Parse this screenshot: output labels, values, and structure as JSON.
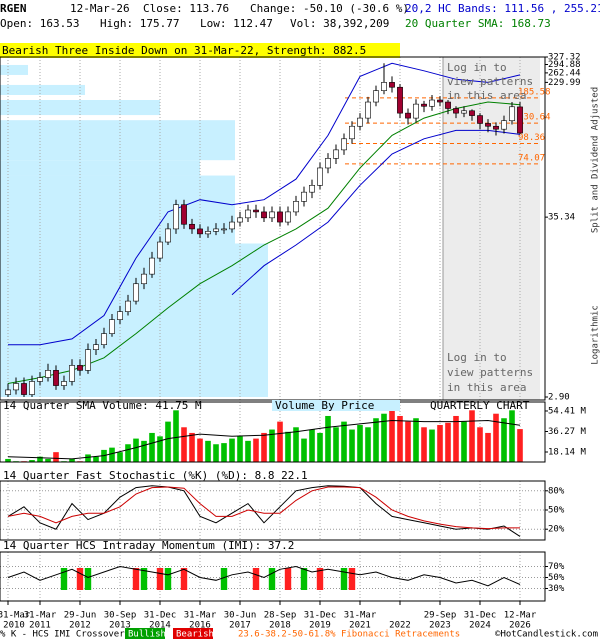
{
  "header": {
    "symbol": "RGEN",
    "date": "12-Mar-26",
    "close": "Close: 113.76",
    "change": "Change: -50.10 (-30.6 %)",
    "bands": "20,2 HC Bands: 111.56 , 255.21",
    "open": "Open: 163.53",
    "high": "High: 175.77",
    "low": "Low: 112.47",
    "volume": "Vol: 38,392,209",
    "sma": "20 Quarter SMA: 168.73"
  },
  "chart_data": [
    {
      "type": "candlestick",
      "title": "Bearish Three Inside Down on 31-Mar-22, Strength: 882.5",
      "open": [
        3.0,
        3.2,
        3.5,
        3.0,
        3.6,
        3.8,
        4.2,
        3.4,
        3.6,
        4.5,
        4.2,
        5.6,
        6.0,
        7.0,
        8.5,
        9.5,
        11,
        14,
        16,
        20,
        25,
        30,
        42,
        32,
        30,
        28,
        29,
        30,
        30,
        33,
        35,
        39,
        38,
        35,
        38,
        33,
        38,
        44,
        50,
        55,
        70,
        80,
        90,
        105,
        125,
        140,
        175,
        205,
        230,
        215,
        150,
        140,
        170,
        165,
        180,
        175,
        160,
        150,
        155,
        145,
        130,
        125,
        120,
        135,
        163.53
      ],
      "high": [
        3.5,
        3.8,
        3.8,
        3.9,
        4.1,
        4.6,
        4.5,
        3.9,
        4.9,
        4.9,
        6.1,
        6.5,
        7.6,
        9.2,
        10.3,
        12,
        15.2,
        17.5,
        21.8,
        27,
        32.5,
        45,
        45,
        34.5,
        32,
        31,
        32.5,
        32.5,
        36,
        38,
        42,
        42,
        41,
        41,
        41,
        41,
        47.5,
        54,
        59.5,
        75.5,
        86,
        97,
        113,
        134,
        150,
        188,
        220,
        300,
        250,
        225,
        160,
        182,
        178,
        193,
        190,
        180,
        165,
        165,
        158,
        150,
        138,
        132,
        145,
        175,
        175.77
      ],
      "low": [
        2.9,
        3.0,
        2.9,
        2.9,
        3.4,
        3.6,
        3.2,
        3.2,
        3.4,
        3.9,
        4.0,
        5.2,
        5.7,
        6.7,
        8.0,
        9.0,
        10.5,
        13,
        15.2,
        19,
        24,
        28,
        30,
        28,
        26.5,
        26.5,
        27.5,
        28,
        28.5,
        31,
        33,
        35,
        33,
        33,
        31,
        31.5,
        36,
        41,
        46,
        52,
        65,
        74,
        84,
        98,
        118,
        130,
        165,
        195,
        200,
        140,
        128,
        132,
        152,
        155,
        165,
        148,
        140,
        142,
        135,
        120,
        115,
        110,
        113,
        128,
        112.47
      ],
      "close": [
        3.2,
        3.5,
        3.0,
        3.6,
        3.8,
        4.2,
        3.4,
        3.6,
        4.5,
        4.2,
        5.6,
        6.0,
        7.0,
        8.5,
        9.5,
        11,
        14,
        16,
        20,
        25,
        30,
        42,
        32,
        30,
        28,
        29,
        30,
        30,
        33,
        35,
        39,
        38,
        35,
        38,
        33,
        38,
        44,
        50,
        55,
        70,
        80,
        90,
        105,
        125,
        140,
        175,
        205,
        230,
        215,
        150,
        140,
        170,
        165,
        180,
        175,
        160,
        150,
        155,
        145,
        130,
        125,
        120,
        135,
        163.86,
        113.76
      ],
      "up_color": "#ffffff",
      "down_color": "#a00030",
      "series": [
        {
          "color": "#0000cc",
          "x": [
            0,
            4,
            8,
            12,
            16,
            20,
            24,
            28,
            32,
            36,
            40,
            44,
            48,
            52,
            56,
            60,
            64
          ],
          "values": [
            6,
            6,
            6.5,
            9,
            20,
            38,
            45,
            42,
            45,
            60,
            110,
            250,
            300,
            270,
            240,
            230,
            255.21
          ]
        },
        {
          "color": "#008000",
          "x": [
            0,
            4,
            8,
            12,
            16,
            20,
            24,
            28,
            32,
            36,
            40,
            44,
            48,
            52,
            56,
            60,
            64
          ],
          "values": [
            3.5,
            3.8,
            4.2,
            5,
            7,
            10,
            14,
            18,
            24,
            30,
            40,
            70,
            110,
            140,
            160,
            175,
            168.73
          ]
        },
        {
          "color": "#0000cc",
          "x": [
            0,
            4,
            8,
            12,
            16,
            20,
            24,
            28,
            32,
            36,
            40,
            44,
            48,
            52,
            56,
            60,
            64
          ],
          "values": [
            null,
            null,
            null,
            null,
            null,
            null,
            null,
            12,
            18,
            24,
            33,
            55,
            85,
            105,
            118,
            118,
            111.56
          ]
        }
      ],
      "log_scale": true,
      "ylim": [
        2.9,
        327.32
      ],
      "yticks": [
        327.32,
        294.88,
        262.44,
        229.99,
        35.34,
        {
          "value": 2.9,
          "label": "2.90"
        }
      ],
      "fib_levels": [
        185.58,
        130.64,
        98.36,
        74.07
      ],
      "fib_color": "#ff6600",
      "volume_by_price": {
        "ranges": [
          [
            255,
            293
          ],
          [
            193,
            222
          ],
          [
            146,
            180
          ],
          [
            78,
            136
          ],
          [
            63,
            78
          ],
          [
            24.5,
            63
          ],
          [
            2.9,
            24.5
          ]
        ],
        "values": [
          28,
          85,
          160,
          235,
          200,
          235,
          268
        ],
        "xlim": [
          0,
          545
        ],
        "color": "#c8f0ff"
      },
      "annotations": [
        {
          "lines": [
            "Log in to",
            "view patterns",
            "in this area"
          ]
        },
        {
          "lines": [
            "Log in to",
            "view patterns",
            "in this area"
          ]
        }
      ],
      "side_labels": [
        "Split and Dividend Adjusted",
        "Logarithmic"
      ],
      "grid": true
    },
    {
      "type": "bar",
      "title": "14 Quarter SMA Volume: 41.75 M",
      "subtitle": "Volume By Price",
      "label": "QUARTERLY CHART",
      "values": [
        12,
        10,
        10,
        11,
        14,
        12,
        18,
        10,
        12,
        10,
        16,
        14,
        20,
        22,
        18,
        25,
        30,
        28,
        35,
        32,
        45,
        55,
        40,
        35,
        30,
        28,
        25,
        26,
        30,
        32,
        28,
        30,
        35,
        38,
        45,
        36,
        40,
        30,
        38,
        35,
        50,
        40,
        45,
        38,
        42,
        40,
        48,
        52,
        55,
        50,
        45,
        48,
        40,
        38,
        42,
        44,
        50,
        45,
        55,
        40,
        35,
        52,
        48,
        55,
        38.392209
      ],
      "up_color": "#00c000",
      "down_color": "#ff2020",
      "series": [
        {
          "color": "#000000",
          "x": [
            0,
            4,
            8,
            12,
            16,
            20,
            24,
            28,
            32,
            36,
            40,
            44,
            48,
            52,
            56,
            60,
            64
          ],
          "values": [
            14,
            13,
            12,
            15,
            22,
            30,
            34,
            32,
            33,
            36,
            40,
            43,
            46,
            45,
            45,
            46,
            41.75
          ]
        }
      ],
      "ylim": [
        9.3,
        59.7
      ],
      "yticks": [
        {
          "value": 54.41,
          "label": "54.41 M"
        },
        {
          "value": 36.27,
          "label": "36.27 M"
        },
        {
          "value": 18.14,
          "label": "18.14 M"
        }
      ],
      "grid": true
    },
    {
      "type": "line",
      "title": "14 Quarter Fast Stochastic (%K) (%D): 8.8  22.1",
      "series": [
        {
          "color": "#000000",
          "x": [
            0,
            2,
            4,
            6,
            8,
            10,
            12,
            14,
            16,
            18,
            20,
            22,
            24,
            26,
            28,
            30,
            32,
            34,
            36,
            38,
            40,
            42,
            44,
            46,
            48,
            50,
            52,
            54,
            56,
            58,
            60,
            62,
            64
          ],
          "values": [
            40,
            55,
            30,
            20,
            60,
            35,
            45,
            70,
            85,
            88,
            86,
            80,
            40,
            30,
            45,
            60,
            30,
            55,
            80,
            85,
            88,
            87,
            85,
            60,
            40,
            35,
            30,
            25,
            20,
            22,
            20,
            25,
            8.8
          ]
        },
        {
          "color": "#cc0000",
          "x": [
            0,
            2,
            4,
            6,
            8,
            10,
            12,
            14,
            16,
            18,
            20,
            22,
            24,
            26,
            28,
            30,
            32,
            34,
            36,
            38,
            40,
            42,
            44,
            46,
            48,
            50,
            52,
            54,
            56,
            58,
            60,
            62,
            64
          ],
          "values": [
            40,
            45,
            40,
            30,
            40,
            45,
            45,
            55,
            75,
            85,
            86,
            84,
            60,
            40,
            40,
            50,
            45,
            45,
            65,
            80,
            86,
            86,
            85,
            70,
            50,
            40,
            33,
            28,
            24,
            22,
            21,
            22,
            22.1
          ]
        }
      ],
      "ylim": [
        0,
        100
      ],
      "yticks": [
        {
          "value": 80,
          "label": "80%"
        },
        {
          "value": 50,
          "label": "50%"
        },
        {
          "value": 20,
          "label": "20%"
        }
      ],
      "grid": true
    },
    {
      "type": "line",
      "title": "14 Quarter HCS Intraday Momentum (IMI): 37.2",
      "series": [
        {
          "color": "#000000",
          "x": [
            0,
            2,
            4,
            6,
            8,
            10,
            12,
            14,
            16,
            18,
            20,
            22,
            24,
            26,
            28,
            30,
            32,
            34,
            36,
            38,
            40,
            42,
            44,
            46,
            48,
            50,
            52,
            54,
            56,
            58,
            60,
            62,
            64
          ],
          "values": [
            50,
            60,
            45,
            55,
            65,
            50,
            60,
            70,
            65,
            60,
            55,
            65,
            50,
            45,
            55,
            60,
            50,
            65,
            70,
            60,
            65,
            60,
            55,
            60,
            50,
            45,
            55,
            50,
            40,
            45,
            35,
            50,
            37.2
          ]
        }
      ],
      "bullish": [
        7,
        10,
        17,
        20,
        27,
        33,
        37,
        42
      ],
      "bearish": [
        9,
        16,
        19,
        22,
        31,
        35,
        39,
        43
      ],
      "bullish_color": "#00c000",
      "bearish_color": "#ff2020",
      "ylim": [
        0,
        100
      ],
      "yticks": [
        {
          "value": 70,
          "label": "70%"
        },
        {
          "value": 50,
          "label": "50%"
        },
        {
          "value": 30,
          "label": "30%"
        }
      ],
      "xticks": [
        {
          "value": 0,
          "label": "31-Mar",
          "year": "2010"
        },
        {
          "value": 4,
          "label": "31-Mar",
          "year": "2011"
        },
        {
          "value": 9,
          "label": "29-Jun",
          "year": "2012"
        },
        {
          "value": 14,
          "label": "30-Sep",
          "year": "2013"
        },
        {
          "value": 19,
          "label": "31-Dec",
          "year": "2014"
        },
        {
          "value": 24,
          "label": "31-Mar",
          "year": "2016"
        },
        {
          "value": 29,
          "label": "30-Jun",
          "year": "2017"
        },
        {
          "value": 34,
          "label": "28-Sep",
          "year": "2018"
        },
        {
          "value": 39,
          "label": "31-Dec",
          "year": "2019"
        },
        {
          "value": 44,
          "label": "31-Mar",
          "year": "2021"
        },
        {
          "value": 49,
          "year": "2022"
        },
        {
          "value": 54,
          "label": "29-Sep",
          "year": "2023"
        },
        {
          "value": 59,
          "label": "31-Dec",
          "year": "2024"
        },
        {
          "value": 64,
          "label": "12-Mar",
          "year": "2026"
        }
      ],
      "grid": true
    }
  ],
  "footer": {
    "crossover": "% K - HCS IMI Crossover:",
    "bullish": "Bullish",
    "bearish": "Bearish",
    "fibonacci": "23.6-38.2-50-61.8% Fibonacci Retracements",
    "copyright": "©HotCandlestick.com"
  }
}
